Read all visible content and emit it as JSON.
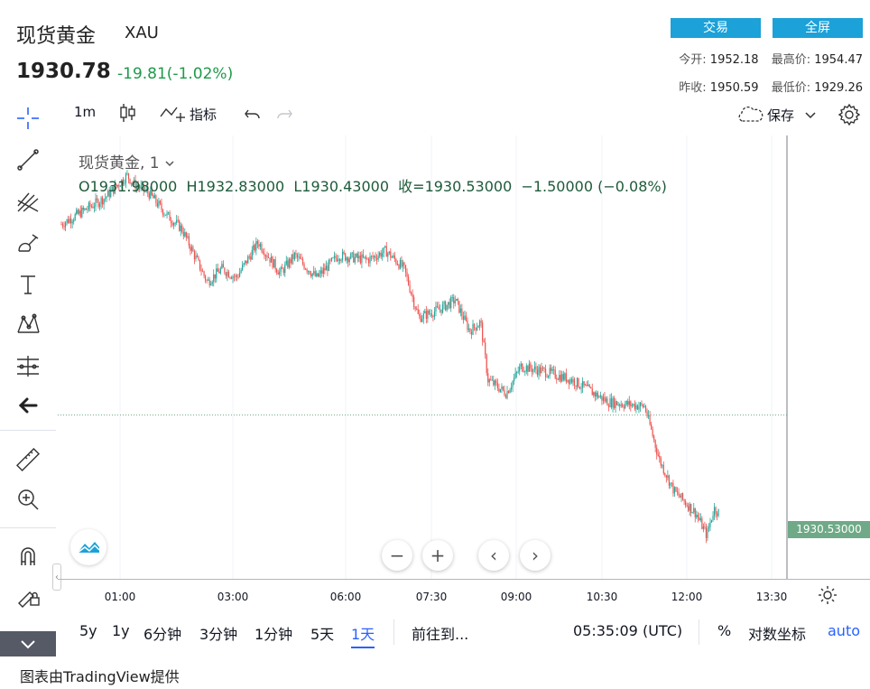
{
  "header": {
    "title": "现货黄金",
    "symbol": "XAU",
    "price": "1930.78",
    "change": "-19.81(-1.02%)",
    "trade_button": "交易",
    "fullscreen_button": "全屏",
    "open_label": "今开:",
    "open_value": "1952.18",
    "high_label": "最高价:",
    "high_value": "1954.47",
    "prev_close_label": "昨收:",
    "prev_close_value": "1950.59",
    "low_label": "最低价:",
    "low_value": "1929.26"
  },
  "toolbar": {
    "interval": "1m",
    "indicators_label": "指标",
    "save_label": "保存"
  },
  "legend": {
    "series_title": "现货黄金, 1",
    "ohlc": "O1931.98000  H1932.83000  L1930.43000  收=1930.53000  −1.50000 (−0.08%)"
  },
  "price_label": "1930.53000",
  "x_ticks": [
    "01:00",
    "03:00",
    "06:00",
    "07:30",
    "09:00",
    "10:30",
    "12:00",
    "13:30"
  ],
  "bottom": {
    "ranges": [
      "5y",
      "1y",
      "6分钟",
      "3分钟",
      "1分钟",
      "5天",
      "1天"
    ],
    "goto_label": "前往到...",
    "time_label": "05:35:09 (UTC)",
    "percent_label": "%",
    "log_label": "对数坐标",
    "auto_label": "auto"
  },
  "footer": "图表由TradingView提供",
  "colors": {
    "up": "#26a69a",
    "down": "#ef5350",
    "accent": "#1ca1d8",
    "last_price": "#6fa987"
  },
  "chart_data": {
    "type": "candlestick",
    "interval": "1m",
    "x_ticks": [
      "01:00",
      "03:00",
      "06:00",
      "07:30",
      "09:00",
      "10:30",
      "12:00",
      "13:30"
    ],
    "last_price": 1930.53,
    "ohlc_last": {
      "open": 1931.98,
      "high": 1932.83,
      "low": 1930.43,
      "close": 1930.53,
      "change": -1.5,
      "change_pct": -0.08
    },
    "path": [
      [
        0,
        1952.0
      ],
      [
        0.03,
        1953.5
      ],
      [
        0.06,
        1955.0
      ],
      [
        0.09,
        1957.5
      ],
      [
        0.1,
        1956.5
      ],
      [
        0.12,
        1955.5
      ],
      [
        0.145,
        1953.0
      ],
      [
        0.165,
        1951.5
      ],
      [
        0.2,
        1945.5
      ],
      [
        0.22,
        1947.0
      ],
      [
        0.24,
        1946.0
      ],
      [
        0.27,
        1950.0
      ],
      [
        0.3,
        1946.5
      ],
      [
        0.32,
        1948.5
      ],
      [
        0.35,
        1946.0
      ],
      [
        0.38,
        1948.5
      ],
      [
        0.42,
        1948.0
      ],
      [
        0.445,
        1949.0
      ],
      [
        0.47,
        1947.0
      ],
      [
        0.49,
        1941.5
      ],
      [
        0.52,
        1942.5
      ],
      [
        0.54,
        1943.5
      ],
      [
        0.56,
        1940.0
      ],
      [
        0.575,
        1941.0
      ],
      [
        0.585,
        1934.5
      ],
      [
        0.61,
        1933.0
      ],
      [
        0.63,
        1936.0
      ],
      [
        0.66,
        1935.5
      ],
      [
        0.7,
        1934.5
      ],
      [
        0.75,
        1932.0
      ],
      [
        0.8,
        1931.5
      ],
      [
        0.82,
        1925.5
      ],
      [
        0.84,
        1922.0
      ],
      [
        0.87,
        1919.5
      ],
      [
        0.885,
        1917.0
      ],
      [
        0.895,
        1920.0
      ],
      [
        0.903,
        1919.5
      ]
    ]
  }
}
